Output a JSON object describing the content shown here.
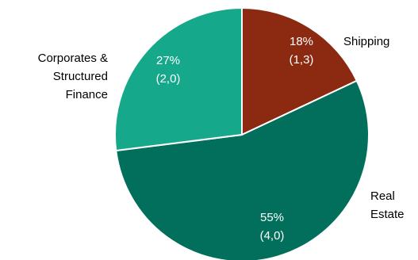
{
  "chart_data": {
    "type": "pie",
    "title": "",
    "slices": [
      {
        "label_lines": [
          "Shipping"
        ],
        "value": 18,
        "value_label": "18%",
        "count_label": "(1,3)",
        "color": "#8b2a11"
      },
      {
        "label_lines": [
          "Real",
          "Estate"
        ],
        "value": 55,
        "value_label": "55%",
        "count_label": "(4,0)",
        "color": "#016f5b"
      },
      {
        "label_lines": [
          "Corporates &",
          "Structured",
          "Finance"
        ],
        "value": 27,
        "value_label": "27%",
        "count_label": "(2,0)",
        "color": "#15a88b"
      }
    ],
    "start_position": "top",
    "direction": "clockwise",
    "legend": "none"
  }
}
